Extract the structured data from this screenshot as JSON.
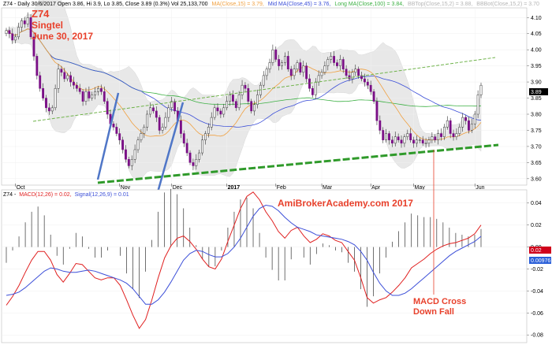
{
  "header": {
    "main_text": "Z74 - Daily 30/6/2017 Open 3.86, Hi 3.9, Lo 3.85, Close 3.89 (0.3%) Vol 25,133,700",
    "ma_short": "MA(Close,15) = 3.79,",
    "ma_mid": "Mid MA(Close,45) = 3.76,",
    "ma_long": "Long MA(Close,100) = 3.84,",
    "bbt": "BBTop(Close,15,2) = 3.88,",
    "bbb": "BBBot(Close,15,2) = 3.70"
  },
  "annotations": {
    "ticker": "Z74",
    "company": "Singtel",
    "date": "June 30, 2017",
    "watermark": "AmiBrokerAcademy.com  2017",
    "macd_note_1": "MACD Cross",
    "macd_note_2": "Down Fall"
  },
  "macd_header": {
    "ticker": "Z74 -",
    "macd": "MACD(12,26) = 0.02,",
    "signal": "Signal(12,26,9) = 0.01"
  },
  "colors": {
    "up": "#ffffff",
    "down": "#7a0f86",
    "ma_short": "#f0a040",
    "ma_mid": "#3c4fd8",
    "ma_long": "#3cb043",
    "macd": "#3c4fd8",
    "signal": "#e02020",
    "price_badge": "#000000",
    "macd_badge": "#d0021b",
    "signal_badge": "#2a5fd8"
  },
  "badges": {
    "price": "3.89",
    "macd": "0.02",
    "signal": "0.00976"
  },
  "chart_data": [
    {
      "type": "candlestick",
      "title": "Z74 - Daily 30/6/2017",
      "x_ticks": [
        "Oct",
        "Nov",
        "Dec",
        "2017",
        "Feb",
        "Mar",
        "Apr",
        "May",
        "Jun"
      ],
      "y_ticks": [
        3.6,
        3.65,
        3.7,
        3.75,
        3.8,
        3.85,
        3.9,
        3.95,
        4.0,
        4.05,
        4.1
      ],
      "y_tick_labels": [
        "3.60",
        "3.65",
        "3.70",
        "3.75",
        "3.80",
        "3.85",
        "3.90",
        "3.95",
        "4.00",
        "4.05",
        "4.10"
      ],
      "ylim": [
        3.58,
        4.13
      ],
      "indicators": [
        "MA(Close,15)",
        "Mid MA(Close,45)",
        "Long MA(Close,100)",
        "BBTop(Close,15,2)",
        "BBBot(Close,15,2)"
      ],
      "last": {
        "date": "30/6/2017",
        "open": 3.86,
        "high": 3.9,
        "low": 3.85,
        "close": 3.89,
        "change_pct": 0.3,
        "volume": 25133700
      },
      "closes": [
        4.06,
        4.05,
        4.03,
        4.04,
        4.07,
        4.09,
        4.08,
        4.1,
        4.04,
        3.98,
        3.92,
        3.88,
        3.85,
        3.82,
        3.81,
        3.82,
        3.88,
        3.94,
        3.93,
        3.91,
        3.92,
        3.9,
        3.89,
        3.88,
        3.87,
        3.84,
        3.87,
        3.85,
        3.86,
        3.87,
        3.88,
        3.87,
        3.84,
        3.8,
        3.77,
        3.76,
        3.74,
        3.72,
        3.69,
        3.66,
        3.64,
        3.66,
        3.69,
        3.72,
        3.74,
        3.76,
        3.8,
        3.82,
        3.81,
        3.79,
        3.75,
        3.76,
        3.79,
        3.82,
        3.84,
        3.81,
        3.78,
        3.74,
        3.71,
        3.68,
        3.65,
        3.64,
        3.66,
        3.68,
        3.72,
        3.74,
        3.76,
        3.79,
        3.82,
        3.81,
        3.8,
        3.82,
        3.84,
        3.86,
        3.84,
        3.82,
        3.86,
        3.89,
        3.88,
        3.84,
        3.81,
        3.83,
        3.86,
        3.89,
        3.92,
        3.94,
        3.96,
        4.0,
        3.97,
        3.95,
        3.96,
        3.98,
        3.94,
        3.92,
        3.94,
        3.96,
        3.93,
        3.95,
        3.91,
        3.88,
        3.86,
        3.9,
        3.92,
        3.93,
        3.95,
        3.97,
        3.98,
        3.96,
        3.95,
        3.97,
        3.94,
        3.92,
        3.91,
        3.93,
        3.94,
        3.92,
        3.91,
        3.9,
        3.89,
        3.87,
        3.84,
        3.78,
        3.75,
        3.72,
        3.74,
        3.72,
        3.71,
        3.73,
        3.72,
        3.71,
        3.73,
        3.74,
        3.72,
        3.71,
        3.72,
        3.72,
        3.71,
        3.71,
        3.72,
        3.73,
        3.72,
        3.74,
        3.73,
        3.76,
        3.78,
        3.74,
        3.73,
        3.74,
        3.76,
        3.79,
        3.78,
        3.75,
        3.77,
        3.8,
        3.86,
        3.89
      ]
    },
    {
      "type": "line",
      "title": "MACD(12,26), Signal(12,26,9)",
      "y_ticks": [
        -0.08,
        -0.06,
        -0.04,
        -0.02,
        0.0,
        0.02,
        0.04
      ],
      "y_tick_labels": [
        "-0.08",
        "-0.06",
        "-0.04",
        "-0.02",
        "0.00",
        "0.02",
        "0.04"
      ],
      "ylim": [
        -0.087,
        0.052
      ],
      "series": [
        {
          "name": "MACD(12,26)",
          "values": [
            -0.053,
            -0.045,
            -0.035,
            -0.023,
            -0.012,
            -0.004,
            -0.004,
            -0.012,
            -0.025,
            -0.032,
            -0.024,
            -0.015,
            -0.016,
            -0.022,
            -0.028,
            -0.03,
            -0.028,
            -0.028,
            -0.035,
            -0.048,
            -0.062,
            -0.074,
            -0.066,
            -0.048,
            -0.028,
            -0.01,
            0.001,
            0.008,
            0.01,
            0.005,
            -0.002,
            -0.011,
            -0.018,
            -0.02,
            -0.011,
            0.005,
            0.02,
            0.035,
            0.046,
            0.05,
            0.043,
            0.032,
            0.024,
            0.014,
            0.008,
            0.015,
            0.018,
            0.01,
            0.004,
            0.007,
            0.012,
            0.01,
            0.006,
            0.004,
            -0.004,
            -0.012,
            -0.028,
            -0.046,
            -0.051,
            -0.048,
            -0.046,
            -0.041,
            -0.035,
            -0.028,
            -0.019,
            -0.015,
            -0.011,
            -0.006,
            -0.002,
            0.001,
            0.003,
            0.004,
            0.006,
            0.008,
            0.012,
            0.02
          ]
        },
        {
          "name": "Signal(12,26,9)",
          "values": [
            -0.044,
            -0.043,
            -0.041,
            -0.037,
            -0.032,
            -0.027,
            -0.022,
            -0.019,
            -0.02,
            -0.022,
            -0.023,
            -0.023,
            -0.022,
            -0.021,
            -0.022,
            -0.024,
            -0.026,
            -0.028,
            -0.03,
            -0.033,
            -0.038,
            -0.045,
            -0.052,
            -0.052,
            -0.048,
            -0.041,
            -0.032,
            -0.022,
            -0.012,
            -0.006,
            -0.003,
            -0.004,
            -0.007,
            -0.009,
            -0.009,
            -0.006,
            0.0,
            0.008,
            0.018,
            0.028,
            0.035,
            0.038,
            0.037,
            0.033,
            0.027,
            0.022,
            0.018,
            0.016,
            0.014,
            0.011,
            0.01,
            0.009,
            0.008,
            0.007,
            0.005,
            0.002,
            -0.004,
            -0.012,
            -0.023,
            -0.033,
            -0.04,
            -0.044,
            -0.044,
            -0.042,
            -0.038,
            -0.033,
            -0.028,
            -0.023,
            -0.018,
            -0.013,
            -0.008,
            -0.004,
            -0.001,
            0.002,
            0.005,
            0.00976
          ]
        }
      ]
    }
  ]
}
